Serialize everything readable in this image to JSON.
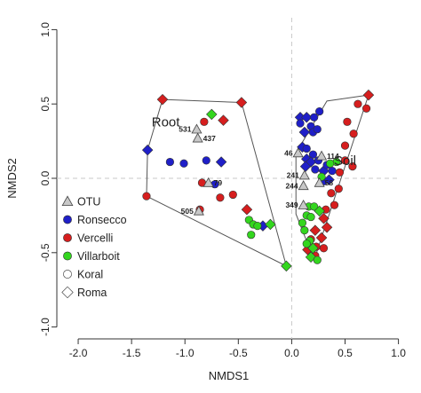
{
  "chart_data": {
    "type": "scatter",
    "title": "",
    "xlabel": "NMDS1",
    "ylabel": "NMDS2",
    "xlim": [
      -2.2,
      1.02
    ],
    "ylim": [
      -1.08,
      1.08
    ],
    "xticks": [
      "-2.0",
      "-1.5",
      "-1.0",
      "-0.5",
      "0.0",
      "0.5",
      "1.0"
    ],
    "xtick_values": [
      -2.0,
      -1.5,
      -1.0,
      -0.5,
      0.0,
      0.5,
      1.0
    ],
    "yticks": [
      "-1.0",
      "-0.5",
      "0.0",
      "0.5",
      "1.0"
    ],
    "ytick_values": [
      -1.0,
      -0.5,
      0.0,
      0.5,
      1.0
    ],
    "grid": false,
    "reference_lines": {
      "x": 0,
      "y": 0,
      "style": "dashed"
    },
    "colors": {
      "Ronsecco": "#1f1fc8",
      "Vercelli": "#d61e1e",
      "Villarboit": "#33d61e",
      "OTU": "#c8c8c8"
    },
    "groups": [
      {
        "name": "Root",
        "hull": [
          [
            -1.35,
            0.19
          ],
          [
            -1.21,
            0.53
          ],
          [
            -0.47,
            0.51
          ],
          [
            -0.05,
            -0.59
          ],
          [
            -1.36,
            -0.12
          ]
        ]
      },
      {
        "name": "Soil",
        "hull": [
          [
            0.04,
            0.17
          ],
          [
            0.33,
            0.52
          ],
          [
            0.72,
            0.56
          ],
          [
            0.21,
            -0.55
          ],
          [
            0.04,
            -0.24
          ]
        ]
      }
    ],
    "legend": {
      "placement": "bottom-left",
      "entries": [
        {
          "label": "OTU",
          "shape": "triangle",
          "color": "#c8c8c8"
        },
        {
          "label": "Ronsecco",
          "shape": "circle",
          "color": "#1f1fc8"
        },
        {
          "label": "Vercelli",
          "shape": "circle",
          "color": "#d61e1e"
        },
        {
          "label": "Villarboit",
          "shape": "circle",
          "color": "#33d61e"
        },
        {
          "label": "Koral",
          "shape": "circle",
          "color": "#ffffff"
        },
        {
          "label": "Roma",
          "shape": "diamond",
          "color": "#ffffff"
        }
      ]
    },
    "otus": [
      {
        "label": "531",
        "x": -0.89,
        "y": 0.33
      },
      {
        "label": "437",
        "x": -0.88,
        "y": 0.27
      },
      {
        "label": "79",
        "x": -0.78,
        "y": -0.03
      },
      {
        "label": "505",
        "x": -0.87,
        "y": -0.22
      },
      {
        "label": "46",
        "x": 0.06,
        "y": 0.17
      },
      {
        "label": "114",
        "x": 0.28,
        "y": 0.15
      },
      {
        "label": "241",
        "x": 0.12,
        "y": 0.02
      },
      {
        "label": "58",
        "x": 0.26,
        "y": -0.03
      },
      {
        "label": "244",
        "x": 0.11,
        "y": -0.05
      },
      {
        "label": "349",
        "x": 0.11,
        "y": -0.18
      }
    ],
    "series": [
      {
        "name": "Ronsecco",
        "points": [
          {
            "x": -1.35,
            "y": 0.19,
            "shape": "diamond"
          },
          {
            "x": -1.14,
            "y": 0.11,
            "shape": "circle"
          },
          {
            "x": -1.01,
            "y": 0.1,
            "shape": "circle"
          },
          {
            "x": -0.8,
            "y": 0.12,
            "shape": "circle"
          },
          {
            "x": -0.66,
            "y": 0.11,
            "shape": "diamond"
          },
          {
            "x": -0.72,
            "y": -0.04,
            "shape": "circle"
          },
          {
            "x": -0.27,
            "y": -0.32,
            "shape": "diamond"
          },
          {
            "x": 0.08,
            "y": 0.41,
            "shape": "diamond"
          },
          {
            "x": 0.08,
            "y": 0.37,
            "shape": "circle"
          },
          {
            "x": 0.14,
            "y": 0.41,
            "shape": "diamond"
          },
          {
            "x": 0.18,
            "y": 0.35,
            "shape": "circle"
          },
          {
            "x": 0.21,
            "y": 0.41,
            "shape": "circle"
          },
          {
            "x": 0.26,
            "y": 0.45,
            "shape": "circle"
          },
          {
            "x": 0.12,
            "y": 0.31,
            "shape": "diamond"
          },
          {
            "x": 0.2,
            "y": 0.31,
            "shape": "circle"
          },
          {
            "x": 0.24,
            "y": 0.33,
            "shape": "circle"
          },
          {
            "x": 0.1,
            "y": 0.21,
            "shape": "diamond"
          },
          {
            "x": 0.14,
            "y": 0.2,
            "shape": "circle"
          },
          {
            "x": 0.2,
            "y": 0.16,
            "shape": "circle"
          },
          {
            "x": 0.14,
            "y": 0.13,
            "shape": "diamond"
          },
          {
            "x": 0.18,
            "y": 0.11,
            "shape": "diamond"
          },
          {
            "x": 0.25,
            "y": 0.12,
            "shape": "circle"
          },
          {
            "x": 0.22,
            "y": 0.06,
            "shape": "circle"
          },
          {
            "x": 0.3,
            "y": 0.05,
            "shape": "diamond"
          },
          {
            "x": 0.33,
            "y": 0.09,
            "shape": "circle"
          },
          {
            "x": 0.38,
            "y": 0.05,
            "shape": "circle"
          },
          {
            "x": 0.3,
            "y": -0.02,
            "shape": "circle"
          },
          {
            "x": 0.35,
            "y": -0.01,
            "shape": "diamond"
          },
          {
            "x": 0.13,
            "y": 0.08,
            "shape": "diamond"
          }
        ]
      },
      {
        "name": "Vercelli",
        "points": [
          {
            "x": -1.21,
            "y": 0.53,
            "shape": "diamond"
          },
          {
            "x": -1.36,
            "y": -0.12,
            "shape": "circle"
          },
          {
            "x": -0.82,
            "y": 0.38,
            "shape": "circle"
          },
          {
            "x": -0.64,
            "y": 0.39,
            "shape": "diamond"
          },
          {
            "x": -0.47,
            "y": 0.51,
            "shape": "diamond"
          },
          {
            "x": -0.84,
            "y": -0.03,
            "shape": "circle"
          },
          {
            "x": -0.67,
            "y": -0.13,
            "shape": "circle"
          },
          {
            "x": -0.55,
            "y": -0.11,
            "shape": "circle"
          },
          {
            "x": -0.86,
            "y": -0.21,
            "shape": "circle"
          },
          {
            "x": -0.42,
            "y": -0.21,
            "shape": "diamond"
          },
          {
            "x": 0.72,
            "y": 0.56,
            "shape": "diamond"
          },
          {
            "x": 0.62,
            "y": 0.5,
            "shape": "circle"
          },
          {
            "x": 0.7,
            "y": 0.47,
            "shape": "circle"
          },
          {
            "x": 0.52,
            "y": 0.38,
            "shape": "circle"
          },
          {
            "x": 0.58,
            "y": 0.3,
            "shape": "circle"
          },
          {
            "x": 0.5,
            "y": 0.22,
            "shape": "circle"
          },
          {
            "x": 0.5,
            "y": 0.12,
            "shape": "circle"
          },
          {
            "x": 0.57,
            "y": 0.08,
            "shape": "circle"
          },
          {
            "x": 0.45,
            "y": 0.04,
            "shape": "circle"
          },
          {
            "x": 0.44,
            "y": -0.07,
            "shape": "circle"
          },
          {
            "x": 0.37,
            "y": -0.1,
            "shape": "circle"
          },
          {
            "x": 0.4,
            "y": -0.18,
            "shape": "circle"
          },
          {
            "x": 0.32,
            "y": -0.21,
            "shape": "circle"
          },
          {
            "x": 0.3,
            "y": -0.27,
            "shape": "diamond"
          },
          {
            "x": 0.33,
            "y": -0.33,
            "shape": "diamond"
          },
          {
            "x": 0.22,
            "y": -0.35,
            "shape": "diamond"
          },
          {
            "x": 0.28,
            "y": -0.4,
            "shape": "diamond"
          },
          {
            "x": 0.23,
            "y": -0.46,
            "shape": "circle"
          },
          {
            "x": 0.18,
            "y": -0.41,
            "shape": "circle"
          },
          {
            "x": 0.15,
            "y": -0.48,
            "shape": "diamond"
          },
          {
            "x": 0.3,
            "y": -0.47,
            "shape": "circle"
          },
          {
            "x": 0.22,
            "y": -0.52,
            "shape": "circle"
          }
        ]
      },
      {
        "name": "Villarboit",
        "points": [
          {
            "x": -0.75,
            "y": 0.43,
            "shape": "diamond"
          },
          {
            "x": -0.4,
            "y": -0.28,
            "shape": "circle"
          },
          {
            "x": -0.36,
            "y": -0.31,
            "shape": "circle"
          },
          {
            "x": -0.32,
            "y": -0.32,
            "shape": "circle"
          },
          {
            "x": -0.2,
            "y": -0.31,
            "shape": "diamond"
          },
          {
            "x": -0.38,
            "y": -0.38,
            "shape": "circle"
          },
          {
            "x": -0.05,
            "y": -0.59,
            "shape": "diamond"
          },
          {
            "x": 0.42,
            "y": 0.11,
            "shape": "circle"
          },
          {
            "x": 0.36,
            "y": 0.1,
            "shape": "circle"
          },
          {
            "x": 0.28,
            "y": 0.01,
            "shape": "circle"
          },
          {
            "x": 0.16,
            "y": -0.19,
            "shape": "circle"
          },
          {
            "x": 0.21,
            "y": -0.19,
            "shape": "circle"
          },
          {
            "x": 0.26,
            "y": -0.22,
            "shape": "diamond"
          },
          {
            "x": 0.14,
            "y": -0.25,
            "shape": "circle"
          },
          {
            "x": 0.18,
            "y": -0.26,
            "shape": "circle"
          },
          {
            "x": 0.1,
            "y": -0.3,
            "shape": "circle"
          },
          {
            "x": 0.12,
            "y": -0.35,
            "shape": "circle"
          },
          {
            "x": 0.17,
            "y": -0.42,
            "shape": "circle"
          },
          {
            "x": 0.2,
            "y": -0.47,
            "shape": "diamond"
          },
          {
            "x": 0.18,
            "y": -0.53,
            "shape": "diamond"
          },
          {
            "x": 0.24,
            "y": -0.55,
            "shape": "circle"
          },
          {
            "x": 0.14,
            "y": -0.44,
            "shape": "circle"
          }
        ]
      }
    ]
  }
}
